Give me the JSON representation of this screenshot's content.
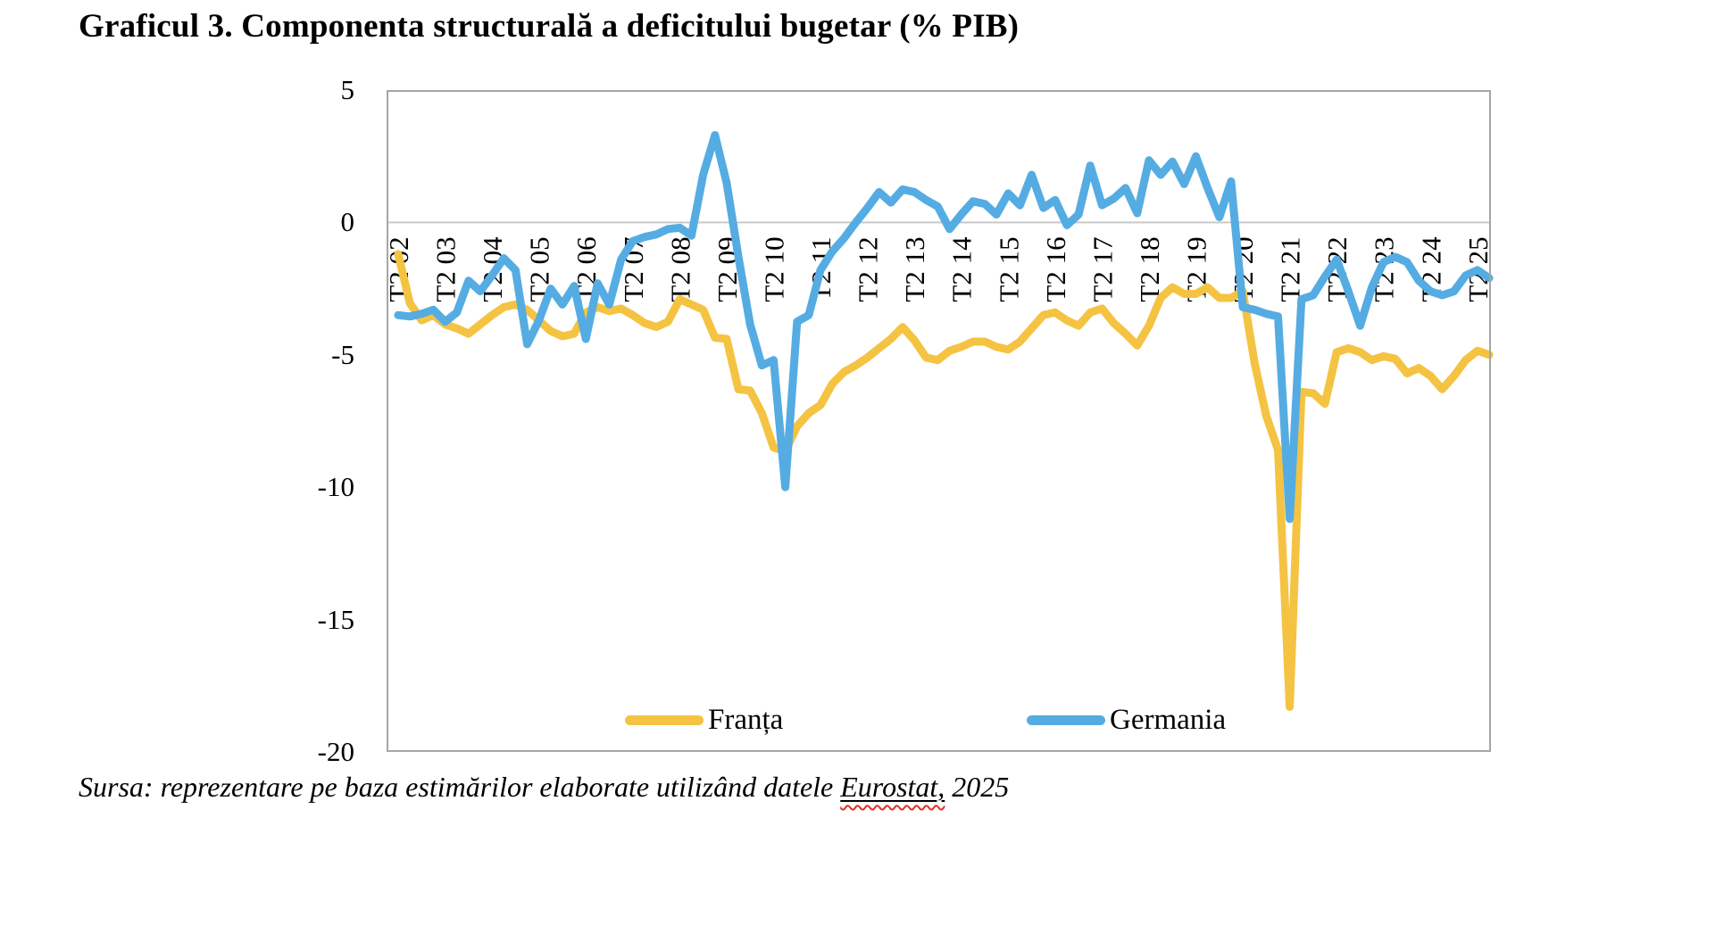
{
  "title": "Graficul 3. Componenta structurală a deficitului bugetar (% PIB)",
  "source": {
    "prefix": "Sursa: reprezentare pe baza estimărilor elaborate utilizând datele ",
    "highlight": "Eurostat,",
    "suffix": " 2025",
    "squiggle_color": "#e03226"
  },
  "chart_data": {
    "type": "line",
    "title": "Graficul 3. Componenta structurală a deficitului bugetar (% PIB)",
    "x_unit": "quarter",
    "x_start": "T2 2002",
    "x_end": "T3 2025",
    "x_tick_every": 4,
    "x_tick_labels": [
      "T2 02",
      "T2 03",
      "T2 04",
      "T2 05",
      "T2 06",
      "T2 07",
      "T2 08",
      "T2 09",
      "T2 10",
      "T2 11",
      "T2 12",
      "T2 13",
      "T2 14",
      "T2 15",
      "T2 16",
      "T2 17",
      "T2 18",
      "T2 19",
      "T2 20",
      "T2 21",
      "T2 22",
      "T2 23",
      "T2 24",
      "T2 25"
    ],
    "y_ticks": [
      5,
      0,
      -5,
      -10,
      -15,
      -20
    ],
    "ylim": [
      -20,
      5
    ],
    "grid": "zero-line-only",
    "zero_line_color": "#c9c9c9",
    "border_color": "#a6a6a6",
    "legend_position": "bottom-inside",
    "series": [
      {
        "name": "Franța",
        "color": "#f5c342",
        "values": [
          -1.2,
          -3.05,
          -3.7,
          -3.5,
          -3.85,
          -4.0,
          -4.2,
          -3.85,
          -3.5,
          -3.2,
          -3.1,
          -3.3,
          -3.7,
          -4.1,
          -4.3,
          -4.2,
          -3.4,
          -3.2,
          -3.35,
          -3.25,
          -3.5,
          -3.8,
          -3.95,
          -3.75,
          -2.9,
          -3.1,
          -3.3,
          -4.35,
          -4.4,
          -6.3,
          -6.35,
          -7.2,
          -8.5,
          -8.65,
          -7.7,
          -7.2,
          -6.9,
          -6.1,
          -5.65,
          -5.4,
          -5.1,
          -4.75,
          -4.4,
          -3.95,
          -4.45,
          -5.1,
          -5.2,
          -4.85,
          -4.7,
          -4.5,
          -4.5,
          -4.7,
          -4.8,
          -4.5,
          -4.0,
          -3.5,
          -3.4,
          -3.7,
          -3.9,
          -3.4,
          -3.25,
          -3.8,
          -4.2,
          -4.65,
          -3.9,
          -2.85,
          -2.45,
          -2.7,
          -2.7,
          -2.45,
          -2.85,
          -2.85,
          -2.6,
          -5.3,
          -7.3,
          -8.6,
          -18.3,
          -6.4,
          -6.45,
          -6.85,
          -4.9,
          -4.75,
          -4.9,
          -5.2,
          -5.05,
          -5.15,
          -5.7,
          -5.5,
          -5.8,
          -6.3,
          -5.8,
          -5.2,
          -4.85,
          -5.0
        ]
      },
      {
        "name": "Germania",
        "color": "#55ace2",
        "values": [
          -3.5,
          -3.55,
          -3.45,
          -3.3,
          -3.75,
          -3.4,
          -2.2,
          -2.6,
          -2.0,
          -1.35,
          -1.8,
          -4.6,
          -3.7,
          -2.5,
          -3.1,
          -2.4,
          -4.4,
          -2.3,
          -3.1,
          -1.4,
          -0.7,
          -0.55,
          -0.45,
          -0.25,
          -0.2,
          -0.5,
          1.8,
          3.3,
          1.5,
          -1.3,
          -3.85,
          -5.4,
          -5.2,
          -10.0,
          -3.75,
          -3.5,
          -1.8,
          -1.1,
          -0.6,
          0.0,
          0.55,
          1.15,
          0.75,
          1.25,
          1.15,
          0.85,
          0.6,
          -0.25,
          0.3,
          0.8,
          0.7,
          0.3,
          1.1,
          0.65,
          1.8,
          0.55,
          0.85,
          -0.1,
          0.3,
          2.15,
          0.65,
          0.9,
          1.3,
          0.35,
          2.35,
          1.8,
          2.3,
          1.45,
          2.5,
          1.3,
          0.2,
          1.55,
          -3.2,
          -3.3,
          -3.45,
          -3.55,
          -11.2,
          -2.9,
          -2.75,
          -2.05,
          -1.4,
          -2.6,
          -3.9,
          -2.45,
          -1.5,
          -1.3,
          -1.5,
          -2.2,
          -2.6,
          -2.75,
          -2.6,
          -2.0,
          -1.8,
          -2.1
        ]
      }
    ]
  }
}
